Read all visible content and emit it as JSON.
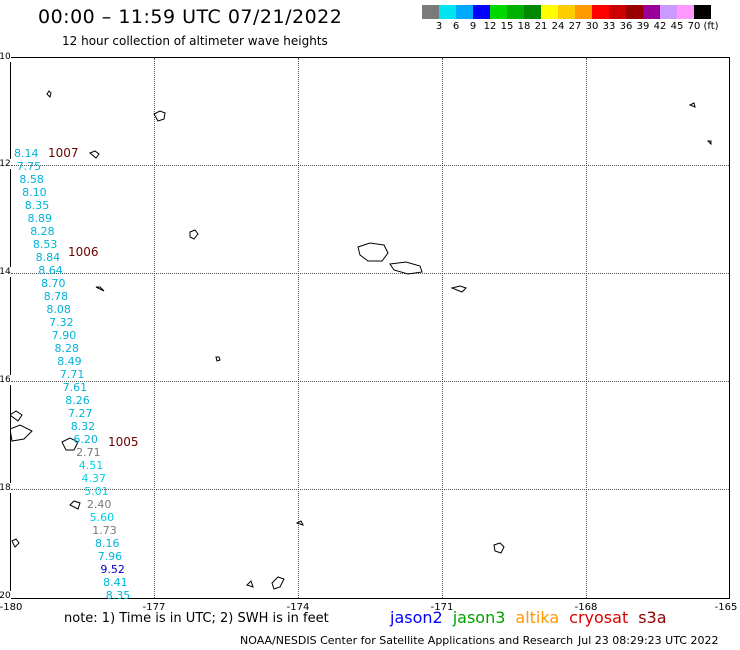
{
  "header": {
    "title": "00:00 – 11:59 UTC 07/21/2022",
    "subtitle": "12 hour collection of altimeter wave heights"
  },
  "colorbar": {
    "colors": [
      "#7a7a7a",
      "#00e5f0",
      "#00a8ff",
      "#0000ff",
      "#00d800",
      "#00b000",
      "#008800",
      "#ffff00",
      "#ffcc00",
      "#ff9900",
      "#ff0000",
      "#cc0000",
      "#990000",
      "#990099",
      "#cc99ff",
      "#ff99ff",
      "#000000"
    ],
    "labels": [
      "3",
      "6",
      "9",
      "12",
      "15",
      "18",
      "21",
      "24",
      "27",
      "30",
      "33",
      "36",
      "39",
      "42",
      "45",
      "70",
      "(ft)"
    ]
  },
  "axes": {
    "lat_labels": [
      "-10",
      "-12",
      "-14",
      "-16",
      "-18",
      "-20"
    ],
    "lon_labels": [
      "-180",
      "-177",
      "-174",
      "-171",
      "-168",
      "-165"
    ]
  },
  "pressures": [
    "1007",
    "1006",
    "1005"
  ],
  "wave_heights": [
    {
      "v": "8.14",
      "c": "#00b4d8"
    },
    {
      "v": "7.75",
      "c": "#00b4d8"
    },
    {
      "v": "8.58",
      "c": "#00b4d8"
    },
    {
      "v": "8.10",
      "c": "#00b4d8"
    },
    {
      "v": "8.35",
      "c": "#00b4d8"
    },
    {
      "v": "8.89",
      "c": "#00b4d8"
    },
    {
      "v": "8.28",
      "c": "#00b4d8"
    },
    {
      "v": "8.53",
      "c": "#00b4d8"
    },
    {
      "v": "8.84",
      "c": "#00b4d8"
    },
    {
      "v": "8.64",
      "c": "#00b4d8"
    },
    {
      "v": "8.70",
      "c": "#00b4d8"
    },
    {
      "v": "8.78",
      "c": "#00b4d8"
    },
    {
      "v": "8.08",
      "c": "#00b4d8"
    },
    {
      "v": "7.32",
      "c": "#00b4d8"
    },
    {
      "v": "7.90",
      "c": "#00b4d8"
    },
    {
      "v": "8.28",
      "c": "#00b4d8"
    },
    {
      "v": "8.49",
      "c": "#00b4d8"
    },
    {
      "v": "7.71",
      "c": "#00b4d8"
    },
    {
      "v": "7.61",
      "c": "#00b4d8"
    },
    {
      "v": "8.26",
      "c": "#00b4d8"
    },
    {
      "v": "7.27",
      "c": "#00b4d8"
    },
    {
      "v": "8.32",
      "c": "#00b4d8"
    },
    {
      "v": "6.20",
      "c": "#00b4d8"
    },
    {
      "v": "2.71",
      "c": "#7a7a7a"
    },
    {
      "v": "4.51",
      "c": "#00d0e8"
    },
    {
      "v": "4.37",
      "c": "#00d0e8"
    },
    {
      "v": "5.01",
      "c": "#00d0e8"
    },
    {
      "v": "2.40",
      "c": "#7a7a7a"
    },
    {
      "v": "5.60",
      "c": "#00d0e8"
    },
    {
      "v": "1.73",
      "c": "#7a7a7a"
    },
    {
      "v": "8.16",
      "c": "#00b4d8"
    },
    {
      "v": "7.96",
      "c": "#00b4d8"
    },
    {
      "v": "9.52",
      "c": "#0000cc"
    },
    {
      "v": "8.41",
      "c": "#00b4d8"
    },
    {
      "v": "8.35",
      "c": "#00b4d8"
    }
  ],
  "footer": {
    "note": "note: 1) Time is in UTC; 2) SWH is in feet",
    "missions": [
      {
        "name": "jason2",
        "color": "#0000ff"
      },
      {
        "name": "jason3",
        "color": "#00a000"
      },
      {
        "name": "altika",
        "color": "#ff9900"
      },
      {
        "name": "cryosat",
        "color": "#dd0000"
      },
      {
        "name": "s3a",
        "color": "#8b0000"
      }
    ],
    "credit": "NOAA/NESDIS Center for Satellite Applications and Research",
    "timestamp": "Jul 23 08:29:23 UTC 2022"
  }
}
